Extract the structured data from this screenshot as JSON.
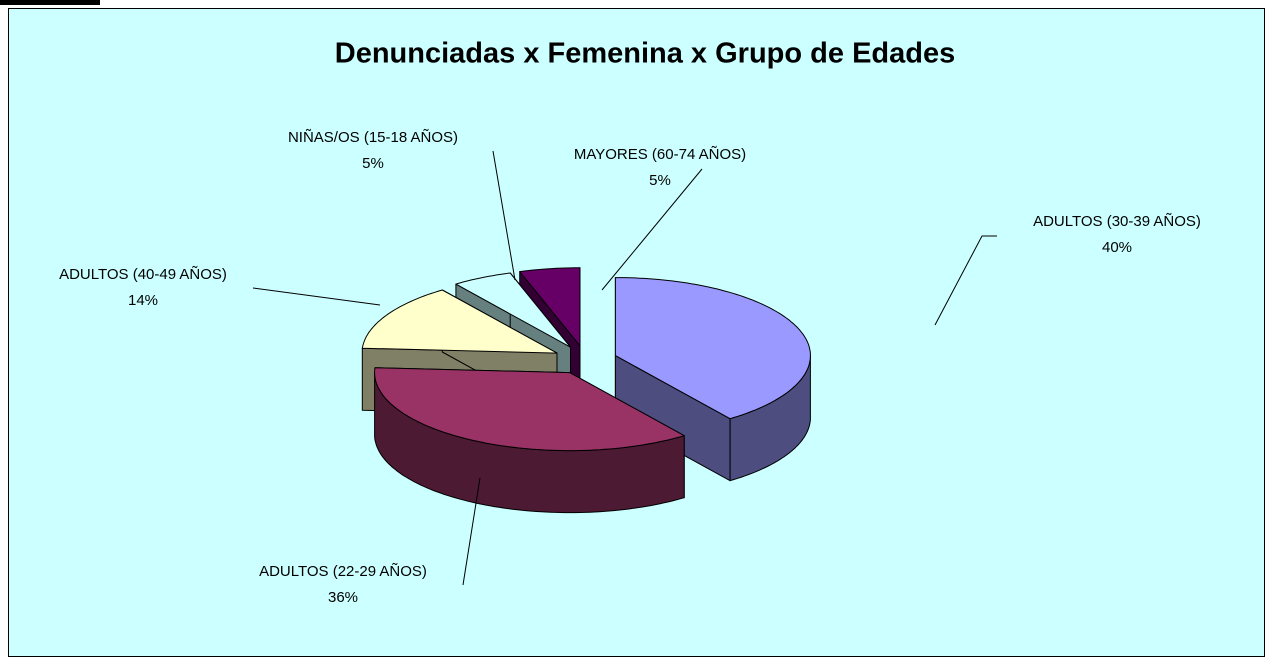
{
  "chart_data": {
    "type": "pie",
    "title": "Denunciadas x Femenina x Grupo de Edades",
    "categories": [
      "ADULTOS (30-39 AÑOS)",
      "ADULTOS (22-29 AÑOS)",
      "ADULTOS (40-49 AÑOS)",
      "NIÑAS/OS (15-18 AÑOS)",
      "MAYORES (60-74 AÑOS)"
    ],
    "values": [
      40,
      36,
      14,
      5,
      5
    ],
    "value_labels": [
      "40%",
      "36%",
      "14%",
      "5%",
      "5%"
    ],
    "colors": [
      "#9999ff",
      "#993366",
      "#ffffcc",
      "#ccffff",
      "#660066"
    ]
  }
}
